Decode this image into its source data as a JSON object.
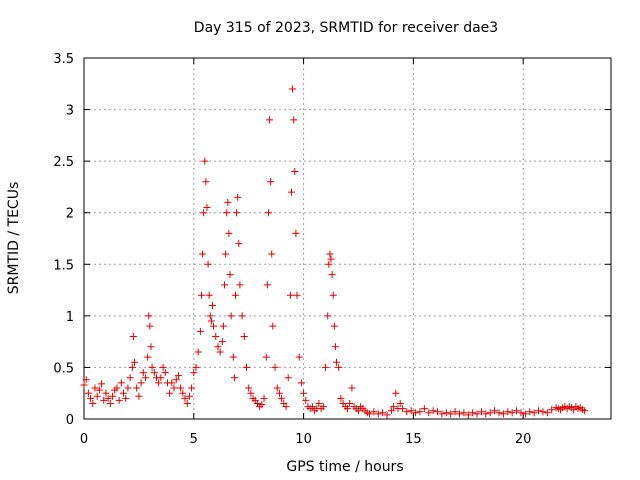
{
  "chart_data": {
    "type": "scatter",
    "title": "Day 315 of 2023, SRMTID for receiver dae3",
    "xlabel": "GPS time / hours",
    "ylabel": "SRMTID / TECUs",
    "xlim": [
      0,
      24
    ],
    "ylim": [
      0,
      3.5
    ],
    "xticks": [
      0,
      5,
      10,
      15,
      20
    ],
    "xtick_labels": [
      "0",
      "5",
      "10",
      "15",
      "20"
    ],
    "yticks": [
      0,
      0.5,
      1,
      1.5,
      2,
      2.5,
      3,
      3.5
    ],
    "ytick_labels": [
      "0",
      "0.5",
      "1",
      "1.5",
      "2",
      "2.5",
      "3",
      "3.5"
    ],
    "grid": true,
    "marker": "+",
    "marker_color": "#e00000",
    "series": [
      {
        "name": "SRMTID",
        "points": [
          [
            0.0,
            0.33
          ],
          [
            0.1,
            0.38
          ],
          [
            0.2,
            0.25
          ],
          [
            0.3,
            0.2
          ],
          [
            0.4,
            0.15
          ],
          [
            0.5,
            0.3
          ],
          [
            0.6,
            0.22
          ],
          [
            0.7,
            0.28
          ],
          [
            0.8,
            0.34
          ],
          [
            0.9,
            0.18
          ],
          [
            1.0,
            0.25
          ],
          [
            1.1,
            0.2
          ],
          [
            1.2,
            0.15
          ],
          [
            1.3,
            0.22
          ],
          [
            1.4,
            0.28
          ],
          [
            1.5,
            0.3
          ],
          [
            1.6,
            0.18
          ],
          [
            1.7,
            0.35
          ],
          [
            1.8,
            0.25
          ],
          [
            1.9,
            0.2
          ],
          [
            2.0,
            0.3
          ],
          [
            2.1,
            0.4
          ],
          [
            2.2,
            0.5
          ],
          [
            2.25,
            0.8
          ],
          [
            2.3,
            0.55
          ],
          [
            2.4,
            0.3
          ],
          [
            2.5,
            0.22
          ],
          [
            2.6,
            0.35
          ],
          [
            2.7,
            0.45
          ],
          [
            2.8,
            0.4
          ],
          [
            2.9,
            0.6
          ],
          [
            2.95,
            1.0
          ],
          [
            3.0,
            0.9
          ],
          [
            3.05,
            0.7
          ],
          [
            3.1,
            0.5
          ],
          [
            3.2,
            0.45
          ],
          [
            3.3,
            0.4
          ],
          [
            3.4,
            0.35
          ],
          [
            3.5,
            0.4
          ],
          [
            3.6,
            0.5
          ],
          [
            3.7,
            0.45
          ],
          [
            3.8,
            0.35
          ],
          [
            3.9,
            0.25
          ],
          [
            4.0,
            0.35
          ],
          [
            4.1,
            0.3
          ],
          [
            4.2,
            0.38
          ],
          [
            4.3,
            0.42
          ],
          [
            4.4,
            0.3
          ],
          [
            4.5,
            0.25
          ],
          [
            4.6,
            0.2
          ],
          [
            4.7,
            0.15
          ],
          [
            4.8,
            0.22
          ],
          [
            4.9,
            0.3
          ],
          [
            5.0,
            0.45
          ],
          [
            5.1,
            0.5
          ],
          [
            5.2,
            0.65
          ],
          [
            5.3,
            0.85
          ],
          [
            5.35,
            1.2
          ],
          [
            5.4,
            1.6
          ],
          [
            5.45,
            2.0
          ],
          [
            5.5,
            2.5
          ],
          [
            5.55,
            2.3
          ],
          [
            5.6,
            2.05
          ],
          [
            5.65,
            1.5
          ],
          [
            5.7,
            1.2
          ],
          [
            5.75,
            1.0
          ],
          [
            5.8,
            0.95
          ],
          [
            5.85,
            1.1
          ],
          [
            5.9,
            0.9
          ],
          [
            6.0,
            0.8
          ],
          [
            6.1,
            0.7
          ],
          [
            6.2,
            0.65
          ],
          [
            6.3,
            0.75
          ],
          [
            6.35,
            0.9
          ],
          [
            6.4,
            1.3
          ],
          [
            6.45,
            1.6
          ],
          [
            6.5,
            2.0
          ],
          [
            6.55,
            2.1
          ],
          [
            6.6,
            1.8
          ],
          [
            6.65,
            1.4
          ],
          [
            6.7,
            1.0
          ],
          [
            6.8,
            0.6
          ],
          [
            6.85,
            0.4
          ],
          [
            6.9,
            1.2
          ],
          [
            6.95,
            2.0
          ],
          [
            7.0,
            2.15
          ],
          [
            7.05,
            1.7
          ],
          [
            7.1,
            1.3
          ],
          [
            7.2,
            1.0
          ],
          [
            7.3,
            0.8
          ],
          [
            7.4,
            0.5
          ],
          [
            7.5,
            0.3
          ],
          [
            7.6,
            0.25
          ],
          [
            7.7,
            0.2
          ],
          [
            7.8,
            0.18
          ],
          [
            7.9,
            0.15
          ],
          [
            8.0,
            0.12
          ],
          [
            8.1,
            0.14
          ],
          [
            8.2,
            0.2
          ],
          [
            8.3,
            0.6
          ],
          [
            8.35,
            1.3
          ],
          [
            8.4,
            2.0
          ],
          [
            8.45,
            2.9
          ],
          [
            8.5,
            2.3
          ],
          [
            8.55,
            1.6
          ],
          [
            8.6,
            0.9
          ],
          [
            8.7,
            0.5
          ],
          [
            8.8,
            0.3
          ],
          [
            8.9,
            0.25
          ],
          [
            9.0,
            0.2
          ],
          [
            9.1,
            0.15
          ],
          [
            9.2,
            0.12
          ],
          [
            9.3,
            0.4
          ],
          [
            9.4,
            1.2
          ],
          [
            9.45,
            2.2
          ],
          [
            9.5,
            3.2
          ],
          [
            9.55,
            2.9
          ],
          [
            9.6,
            2.4
          ],
          [
            9.65,
            1.8
          ],
          [
            9.7,
            1.2
          ],
          [
            9.8,
            0.6
          ],
          [
            9.9,
            0.35
          ],
          [
            10.0,
            0.25
          ],
          [
            10.1,
            0.18
          ],
          [
            10.2,
            0.12
          ],
          [
            10.3,
            0.1
          ],
          [
            10.4,
            0.12
          ],
          [
            10.5,
            0.08
          ],
          [
            10.6,
            0.1
          ],
          [
            10.7,
            0.15
          ],
          [
            10.8,
            0.1
          ],
          [
            10.9,
            0.12
          ],
          [
            11.0,
            0.5
          ],
          [
            11.1,
            1.0
          ],
          [
            11.15,
            1.5
          ],
          [
            11.2,
            1.6
          ],
          [
            11.25,
            1.55
          ],
          [
            11.3,
            1.4
          ],
          [
            11.35,
            1.2
          ],
          [
            11.4,
            0.9
          ],
          [
            11.45,
            0.7
          ],
          [
            11.5,
            0.55
          ],
          [
            11.6,
            0.5
          ],
          [
            11.7,
            0.2
          ],
          [
            11.8,
            0.15
          ],
          [
            11.9,
            0.12
          ],
          [
            12.0,
            0.1
          ],
          [
            12.1,
            0.15
          ],
          [
            12.2,
            0.3
          ],
          [
            12.3,
            0.12
          ],
          [
            12.4,
            0.1
          ],
          [
            12.5,
            0.08
          ],
          [
            12.6,
            0.12
          ],
          [
            12.7,
            0.1
          ],
          [
            12.8,
            0.08
          ],
          [
            12.9,
            0.06
          ],
          [
            13.0,
            0.05
          ],
          [
            13.2,
            0.07
          ],
          [
            13.4,
            0.05
          ],
          [
            13.6,
            0.06
          ],
          [
            13.8,
            0.04
          ],
          [
            14.0,
            0.08
          ],
          [
            14.1,
            0.12
          ],
          [
            14.2,
            0.25
          ],
          [
            14.3,
            0.1
          ],
          [
            14.4,
            0.15
          ],
          [
            14.5,
            0.1
          ],
          [
            14.7,
            0.07
          ],
          [
            14.9,
            0.08
          ],
          [
            15.1,
            0.06
          ],
          [
            15.3,
            0.07
          ],
          [
            15.5,
            0.1
          ],
          [
            15.7,
            0.06
          ],
          [
            15.9,
            0.08
          ],
          [
            16.1,
            0.07
          ],
          [
            16.3,
            0.05
          ],
          [
            16.5,
            0.06
          ],
          [
            16.7,
            0.05
          ],
          [
            16.9,
            0.07
          ],
          [
            17.1,
            0.05
          ],
          [
            17.3,
            0.06
          ],
          [
            17.5,
            0.04
          ],
          [
            17.7,
            0.06
          ],
          [
            17.9,
            0.05
          ],
          [
            18.1,
            0.07
          ],
          [
            18.3,
            0.05
          ],
          [
            18.5,
            0.06
          ],
          [
            18.7,
            0.08
          ],
          [
            18.9,
            0.06
          ],
          [
            19.1,
            0.05
          ],
          [
            19.3,
            0.07
          ],
          [
            19.5,
            0.06
          ],
          [
            19.7,
            0.08
          ],
          [
            19.9,
            0.06
          ],
          [
            20.1,
            0.05
          ],
          [
            20.3,
            0.07
          ],
          [
            20.5,
            0.06
          ],
          [
            20.7,
            0.08
          ],
          [
            20.9,
            0.07
          ],
          [
            21.1,
            0.06
          ],
          [
            21.3,
            0.09
          ],
          [
            21.5,
            0.11
          ],
          [
            21.6,
            0.1
          ],
          [
            21.7,
            0.09
          ],
          [
            21.8,
            0.11
          ],
          [
            21.9,
            0.12
          ],
          [
            22.0,
            0.1
          ],
          [
            22.1,
            0.12
          ],
          [
            22.2,
            0.11
          ],
          [
            22.3,
            0.09
          ],
          [
            22.4,
            0.12
          ],
          [
            22.5,
            0.1
          ],
          [
            22.6,
            0.11
          ],
          [
            22.7,
            0.09
          ],
          [
            22.8,
            0.08
          ]
        ]
      }
    ]
  }
}
